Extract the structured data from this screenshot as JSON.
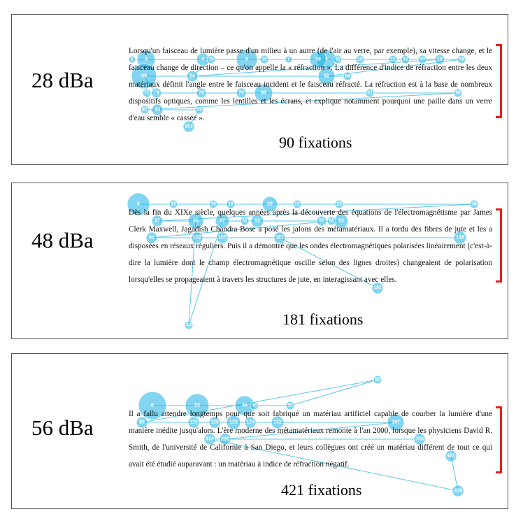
{
  "panels": [
    {
      "condition": "28 dBa",
      "fixation_count": "90 fixations",
      "text": "Lorsqu'un faisceau de lumière passe d'un milieu à un autre (de l'air au verre, par exemple), sa vitesse change, et le faisceau change de direction – ce qu'on appelle la « réfraction ». La différence d'indice de réfraction entre les deux matériaux définit l'angle entre le faisceau incident et le faisceau réfracté. La réfraction est à la base de nombreux dispositifs optiques, comme les lentilles et les écrans, et explique notamment pourquoi une paille dans un verre d'eau semble « cassée ».",
      "fixations": [
        "1",
        "3",
        "4",
        "6",
        "7",
        "9",
        "10",
        "11",
        "12",
        "19",
        "24",
        "25",
        "35",
        "38",
        "41",
        "53",
        "59",
        "62",
        "64",
        "68",
        "74",
        "75",
        "76",
        "79",
        "80",
        "81",
        "90",
        "91",
        "94",
        "95",
        "102"
      ]
    },
    {
      "condition": "48 dBa",
      "fixation_count": "181 fixations",
      "text": "Dès la fin du XIXe siècle, quelques années après la découverte des équations de l'électromagnétisme par James Clerk Maxwell, Jagadish Chandra Bose a posé les jalons des métamatériaux. Il a tordu des fibres de jute et les a disposées en réseaux réguliers. Puis il a démontré que les ondes électromagnétiques polarisées linéairement (c'est-à-dire la lumière dont le champ électromagnétique oscille selon des lignes droites) changeaient de polarisation lorsqu'elles se propageaient à travers les structures de jute, en interagissant avec elles.",
      "fixations": [
        "6",
        "10",
        "16",
        "18",
        "20",
        "22",
        "25",
        "36",
        "37",
        "41",
        "43",
        "47",
        "51",
        "53",
        "60",
        "63",
        "66",
        "94",
        "102",
        "105",
        "145",
        "161",
        "181"
      ]
    },
    {
      "condition": "56 dBa",
      "fixation_count": "421 fixations",
      "text": "Il a fallu attendre longtemps pour que soit fabriqué un matériau artificiel capable de courber la lumière d'une manière inédite jusqu'alors. L'ère moderne des métamatériaux remonte à l'an 2000, lorsque les physiciens David R. Smith, de l'université de Californie à San Diego, et leurs collègues ont créé un matériau différent de tout ce qui avait été étudié auparavant : un matériau à indice de réfraction négatif.",
      "fixations": [
        "8",
        "23",
        "44",
        "45",
        "55",
        "82",
        "99",
        "115",
        "120",
        "122",
        "124",
        "132",
        "187",
        "296",
        "303",
        "330",
        "406",
        "421"
      ]
    }
  ],
  "colors": {
    "fixation": "#1ab3e6",
    "scanpath": "#5cc6e6",
    "bracket": "#e0201c"
  }
}
